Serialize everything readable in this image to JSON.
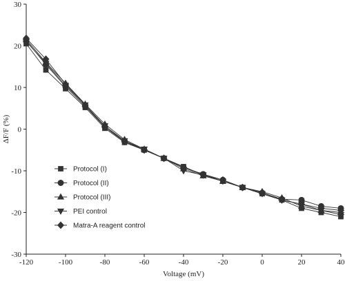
{
  "chart_data": {
    "type": "line",
    "title": "",
    "xlabel": "Voltage (mV)",
    "ylabel": "ΔF/F (%)",
    "xlim": [
      -120,
      40
    ],
    "ylim": [
      -30,
      30
    ],
    "x_ticks": [
      -120,
      -100,
      -80,
      -60,
      -40,
      -20,
      0,
      20,
      40
    ],
    "y_ticks": [
      -30,
      -20,
      -10,
      0,
      10,
      20,
      30
    ],
    "grid": false,
    "legend_position": "lower-left",
    "x": [
      -120,
      -110,
      -100,
      -90,
      -80,
      -70,
      -60,
      -50,
      -40,
      -30,
      -20,
      -10,
      0,
      10,
      20,
      30,
      40
    ],
    "series": [
      {
        "name": "Protocol (I)",
        "marker": "square",
        "values": [
          20.5,
          14.2,
          9.7,
          5.2,
          0.2,
          -3.2,
          -5.0,
          -7.0,
          -9.0,
          -11.0,
          -12.5,
          -14.0,
          -15.5,
          -17.0,
          -19.0,
          -20.0,
          -21.0
        ]
      },
      {
        "name": "Protocol (II)",
        "marker": "circle",
        "values": [
          21.2,
          15.5,
          10.2,
          5.5,
          0.5,
          -2.8,
          -5.0,
          -7.0,
          -9.2,
          -10.8,
          -12.2,
          -14.0,
          -15.3,
          -16.8,
          -17.0,
          -18.5,
          -19.0
        ]
      },
      {
        "name": "Protocol (III)",
        "marker": "triangle-up",
        "values": [
          21.5,
          16.0,
          11.0,
          6.0,
          1.2,
          -2.5,
          -4.8,
          -7.0,
          -9.5,
          -11.2,
          -12.5,
          -14.0,
          -15.0,
          -16.5,
          -18.5,
          -19.5,
          -20.0
        ]
      },
      {
        "name": "PEI control",
        "marker": "triangle-down",
        "values": [
          21.0,
          15.8,
          10.5,
          5.8,
          0.8,
          -2.8,
          -4.8,
          -7.0,
          -10.0,
          -11.0,
          -12.5,
          -14.0,
          -15.5,
          -17.0,
          -18.0,
          -19.5,
          -20.5
        ]
      },
      {
        "name": "Matra-A reagent control",
        "marker": "diamond",
        "values": [
          21.8,
          16.8,
          10.8,
          5.8,
          0.5,
          -3.0,
          -5.0,
          -7.0,
          -9.2,
          -11.0,
          -12.2,
          -14.0,
          -15.2,
          -17.0,
          -18.0,
          -19.0,
          -19.5
        ]
      }
    ]
  },
  "colors": {
    "series": "#333333",
    "axis": "#222222"
  }
}
